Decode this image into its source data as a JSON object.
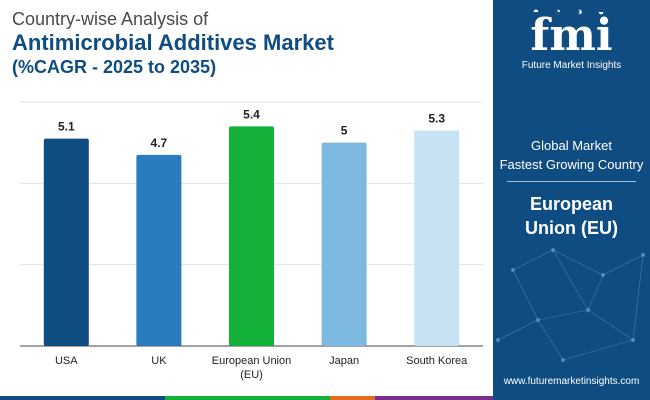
{
  "title": {
    "line1": "Country-wise Analysis of",
    "line2": "Antimicrobial Additives Market",
    "line3": "(%CAGR - 2025 to 2035)"
  },
  "chart_data": {
    "type": "bar",
    "categories": [
      "USA",
      "UK",
      "European Union (EU)",
      "Japan",
      "South Korea"
    ],
    "category_lines": [
      [
        "USA"
      ],
      [
        "UK"
      ],
      [
        "European Union",
        "(EU)"
      ],
      [
        "Japan"
      ],
      [
        "South Korea"
      ]
    ],
    "values": [
      5.1,
      4.7,
      5.4,
      5,
      5.3
    ],
    "value_labels": [
      "5.1",
      "4.7",
      "5.4",
      "5",
      "5.3"
    ],
    "colors": [
      "#0f4c81",
      "#2b7bbf",
      "#13b03a",
      "#7db8e0",
      "#c7e2f3"
    ],
    "ylim": [
      0,
      6
    ],
    "grid": true,
    "title": "Antimicrobial Additives Market",
    "xlabel": "",
    "ylabel": ""
  },
  "panel": {
    "logo_text": "fmi",
    "logo_icons": "◓ ◔ ◑ ◒",
    "logo_sub": "Future Market Insights",
    "global_line1": "Global Market",
    "global_line2": "Fastest Growing Country",
    "country_line1": "European",
    "country_line2": "Union (EU)",
    "website": "www.futuremarketinsights.com"
  },
  "colors": {
    "panel": "#0f4c81",
    "bar_strip": [
      "#0f4c81",
      "#13b03a",
      "#e36f1e",
      "#7b2d8e"
    ]
  }
}
